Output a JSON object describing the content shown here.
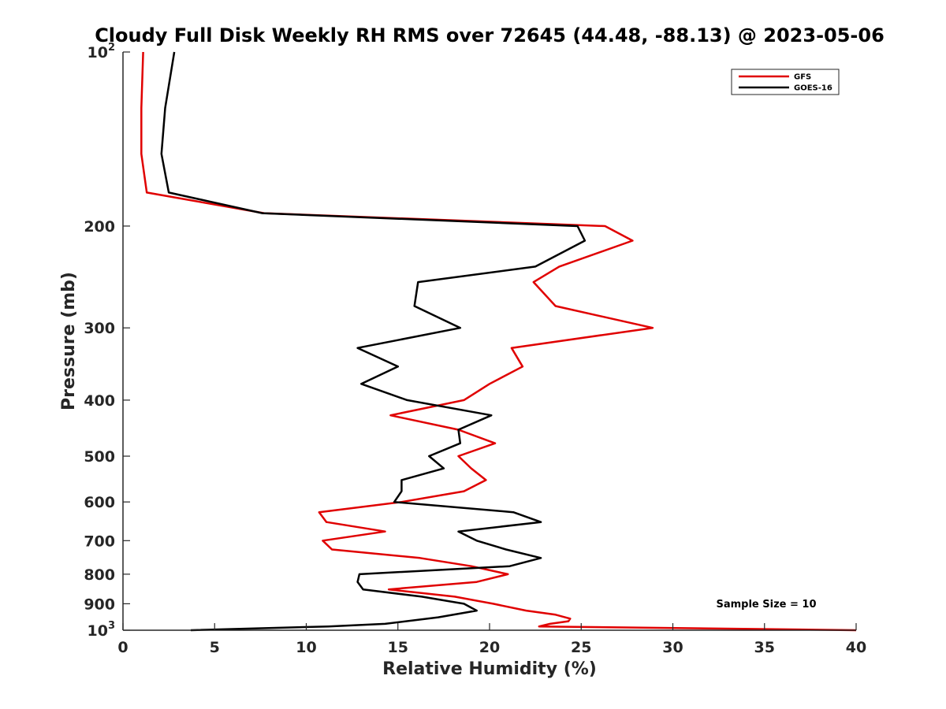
{
  "chart_data": {
    "type": "line",
    "title": "Cloudy Full Disk Weekly RH RMS over 72645 (44.48, -88.13) @ 2023-05-06",
    "xlabel": "Relative Humidity (%)",
    "ylabel": "Pressure (mb)",
    "xlim": [
      0,
      40
    ],
    "ylim": [
      100,
      1000
    ],
    "y_scale": "log",
    "y_reversed": true,
    "grid": false,
    "legend_position": "top-right",
    "x_ticks": [
      0,
      5,
      10,
      15,
      20,
      25,
      30,
      35,
      40
    ],
    "y_ticks": [
      {
        "value": 100,
        "base": "10",
        "exp": "2"
      },
      {
        "value": 200,
        "label": "200"
      },
      {
        "value": 300,
        "label": "300"
      },
      {
        "value": 400,
        "label": "400"
      },
      {
        "value": 500,
        "label": "500"
      },
      {
        "value": 600,
        "label": "600"
      },
      {
        "value": 700,
        "label": "700"
      },
      {
        "value": 800,
        "label": "800"
      },
      {
        "value": 900,
        "label": "900"
      },
      {
        "value": 1000,
        "base": "10",
        "exp": "3"
      }
    ],
    "annotation": "Sample Size = 10",
    "series": [
      {
        "name": "GFS",
        "color": "#e00000",
        "points": [
          [
            1.1,
            100
          ],
          [
            1.0,
            125
          ],
          [
            1.0,
            150
          ],
          [
            1.3,
            175
          ],
          [
            7.7,
            190
          ],
          [
            26.3,
            200
          ],
          [
            27.8,
            212
          ],
          [
            23.8,
            235
          ],
          [
            22.4,
            250
          ],
          [
            23.6,
            275
          ],
          [
            28.9,
            300
          ],
          [
            21.2,
            325
          ],
          [
            21.8,
            350
          ],
          [
            20.0,
            375
          ],
          [
            18.6,
            400
          ],
          [
            14.6,
            425
          ],
          [
            18.3,
            450
          ],
          [
            20.3,
            475
          ],
          [
            18.3,
            500
          ],
          [
            19.0,
            525
          ],
          [
            19.8,
            550
          ],
          [
            18.6,
            575
          ],
          [
            15.2,
            600
          ],
          [
            10.7,
            625
          ],
          [
            11.1,
            650
          ],
          [
            14.3,
            675
          ],
          [
            10.9,
            700
          ],
          [
            11.4,
            725
          ],
          [
            16.2,
            750
          ],
          [
            19.0,
            775
          ],
          [
            21.0,
            800
          ],
          [
            19.3,
            825
          ],
          [
            14.5,
            850
          ],
          [
            18.1,
            875
          ],
          [
            20.2,
            900
          ],
          [
            22.0,
            925
          ],
          [
            23.6,
            940
          ],
          [
            24.4,
            955
          ],
          [
            24.3,
            965
          ],
          [
            23.3,
            975
          ],
          [
            22.7,
            985
          ],
          [
            40.0,
            1000
          ]
        ]
      },
      {
        "name": "GOES-16",
        "color": "#000000",
        "points": [
          [
            2.8,
            100
          ],
          [
            2.3,
            125
          ],
          [
            2.1,
            150
          ],
          [
            2.5,
            175
          ],
          [
            7.6,
            190
          ],
          [
            24.8,
            200
          ],
          [
            25.2,
            212
          ],
          [
            22.5,
            235
          ],
          [
            16.1,
            250
          ],
          [
            15.9,
            275
          ],
          [
            18.4,
            300
          ],
          [
            12.8,
            325
          ],
          [
            15.0,
            350
          ],
          [
            13.0,
            375
          ],
          [
            15.5,
            400
          ],
          [
            20.1,
            425
          ],
          [
            18.3,
            450
          ],
          [
            18.4,
            475
          ],
          [
            16.7,
            500
          ],
          [
            17.5,
            525
          ],
          [
            15.2,
            550
          ],
          [
            15.2,
            575
          ],
          [
            14.8,
            600
          ],
          [
            21.3,
            625
          ],
          [
            22.8,
            650
          ],
          [
            18.3,
            675
          ],
          [
            19.3,
            700
          ],
          [
            20.9,
            725
          ],
          [
            22.8,
            750
          ],
          [
            21.1,
            775
          ],
          [
            12.9,
            800
          ],
          [
            12.8,
            825
          ],
          [
            13.1,
            850
          ],
          [
            16.3,
            875
          ],
          [
            18.6,
            900
          ],
          [
            19.3,
            925
          ],
          [
            17.2,
            950
          ],
          [
            14.3,
            975
          ],
          [
            11.2,
            985
          ],
          [
            3.7,
            1000
          ]
        ]
      }
    ]
  }
}
